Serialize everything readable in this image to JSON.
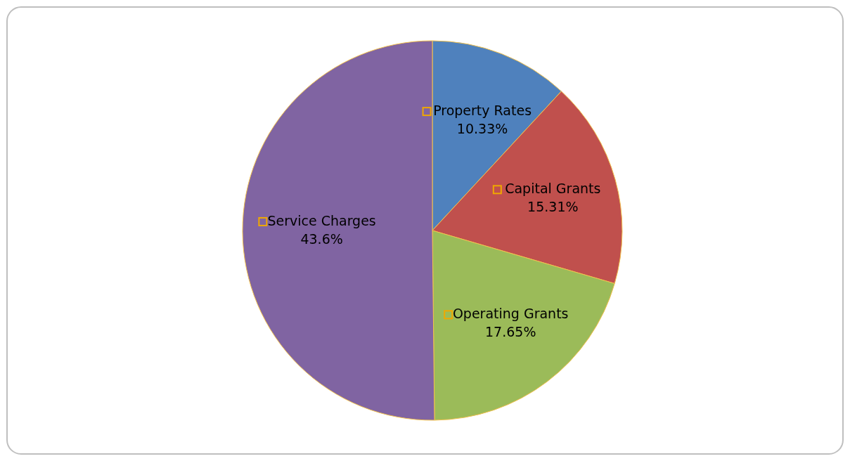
{
  "chart_data": {
    "type": "pie",
    "categories": [
      "Property Rates",
      "Capital Grants",
      "Operating Grants",
      "Service Charges"
    ],
    "values": [
      10.33,
      15.31,
      17.65,
      43.6
    ],
    "colors": [
      "#4f81bd",
      "#c0504d",
      "#9bbb59",
      "#8064a2"
    ],
    "value_labels": [
      "10.33%",
      "15.31%",
      "17.65%",
      "43.6%"
    ],
    "legend": false
  }
}
